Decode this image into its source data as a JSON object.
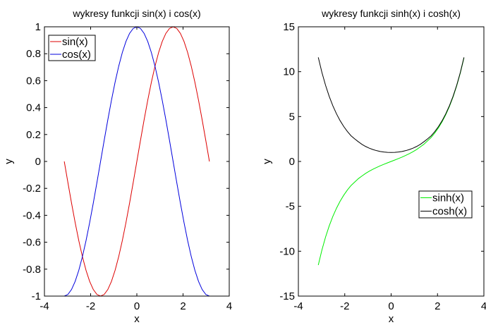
{
  "chart_data": [
    {
      "type": "line",
      "title": "wykresy funkcji sin(x) i cos(x)",
      "xlabel": "x",
      "ylabel": "y",
      "xlim": [
        -4,
        4
      ],
      "ylim": [
        -1,
        1
      ],
      "xticks": [
        -4,
        -2,
        0,
        2,
        4
      ],
      "yticks": [
        -1,
        -0.8,
        -0.6,
        -0.4,
        -0.2,
        0,
        0.2,
        0.4,
        0.6,
        0.8,
        1
      ],
      "xtick_labels": [
        "-4",
        "-2",
        "0",
        "2",
        "4"
      ],
      "ytick_labels": [
        "-1",
        "-0.8",
        "-0.6",
        "-0.4",
        "-0.2",
        "0",
        "0.2",
        "0.4",
        "0.6",
        "0.8",
        "1"
      ],
      "grid": false,
      "legend_position": "top-left",
      "series": [
        {
          "name": "sin(x)",
          "color": "#dd0000",
          "x": [
            -3.1416,
            -2.9845,
            -2.8274,
            -2.6704,
            -2.5133,
            -2.3562,
            -2.1991,
            -2.042,
            -1.885,
            -1.7279,
            -1.5708,
            -1.4137,
            -1.2566,
            -1.0996,
            -0.9425,
            -0.7854,
            -0.6283,
            -0.4712,
            -0.3142,
            -0.1571,
            0,
            0.1571,
            0.3142,
            0.4712,
            0.6283,
            0.7854,
            0.9425,
            1.0996,
            1.2566,
            1.4137,
            1.5708,
            1.7279,
            1.885,
            2.042,
            2.1991,
            2.3562,
            2.5133,
            2.6704,
            2.8274,
            2.9845,
            3.1416
          ],
          "y": [
            0,
            -0.1564,
            -0.309,
            -0.454,
            -0.5878,
            -0.7071,
            -0.809,
            -0.891,
            -0.9511,
            -0.9877,
            -1,
            -0.9877,
            -0.9511,
            -0.891,
            -0.809,
            -0.7071,
            -0.5878,
            -0.454,
            -0.309,
            -0.1564,
            0,
            0.1564,
            0.309,
            0.454,
            0.5878,
            0.7071,
            0.809,
            0.891,
            0.9511,
            0.9877,
            1,
            0.9877,
            0.9511,
            0.891,
            0.809,
            0.7071,
            0.5878,
            0.454,
            0.309,
            0.1564,
            0
          ]
        },
        {
          "name": "cos(x)",
          "color": "#0000dd",
          "x": [
            -3.1416,
            -2.9845,
            -2.8274,
            -2.6704,
            -2.5133,
            -2.3562,
            -2.1991,
            -2.042,
            -1.885,
            -1.7279,
            -1.5708,
            -1.4137,
            -1.2566,
            -1.0996,
            -0.9425,
            -0.7854,
            -0.6283,
            -0.4712,
            -0.3142,
            -0.1571,
            0,
            0.1571,
            0.3142,
            0.4712,
            0.6283,
            0.7854,
            0.9425,
            1.0996,
            1.2566,
            1.4137,
            1.5708,
            1.7279,
            1.885,
            2.042,
            2.1991,
            2.3562,
            2.5133,
            2.6704,
            2.8274,
            2.9845,
            3.1416
          ],
          "y": [
            -1,
            -0.9877,
            -0.9511,
            -0.891,
            -0.809,
            -0.7071,
            -0.5878,
            -0.454,
            -0.309,
            -0.1564,
            0,
            0.1564,
            0.309,
            0.454,
            0.5878,
            0.7071,
            0.809,
            0.891,
            0.9511,
            0.9877,
            1,
            0.9877,
            0.9511,
            0.891,
            0.809,
            0.7071,
            0.5878,
            0.454,
            0.309,
            0.1564,
            0,
            -0.1564,
            -0.309,
            -0.454,
            -0.5878,
            -0.7071,
            -0.809,
            -0.891,
            -0.9511,
            -0.9877,
            -1
          ]
        }
      ]
    },
    {
      "type": "line",
      "title": "wykresy funkcji sinh(x) i cosh(x)",
      "xlabel": "x",
      "ylabel": "y",
      "xlim": [
        -4,
        4
      ],
      "ylim": [
        -15,
        15
      ],
      "xticks": [
        -4,
        -2,
        0,
        2,
        4
      ],
      "yticks": [
        -15,
        -10,
        -5,
        0,
        5,
        10,
        15
      ],
      "xtick_labels": [
        "-4",
        "-2",
        "0",
        "2",
        "4"
      ],
      "ytick_labels": [
        "-15",
        "-10",
        "-5",
        "0",
        "5",
        "10",
        "15"
      ],
      "grid": false,
      "legend_position": "right",
      "series": [
        {
          "name": "sinh(x)",
          "color": "#00ee00",
          "x": [
            -3.1416,
            -2.9845,
            -2.8274,
            -2.6704,
            -2.5133,
            -2.3562,
            -2.1991,
            -2.042,
            -1.885,
            -1.7279,
            -1.5708,
            -1.4137,
            -1.2566,
            -1.0996,
            -0.9425,
            -0.7854,
            -0.6283,
            -0.4712,
            -0.3142,
            -0.1571,
            0,
            0.1571,
            0.3142,
            0.4712,
            0.6283,
            0.7854,
            0.9425,
            1.0996,
            1.2566,
            1.4137,
            1.5708,
            1.7279,
            1.885,
            2.042,
            2.1991,
            2.3562,
            2.5133,
            2.6704,
            2.8274,
            2.9845,
            3.1416
          ],
          "y": [
            -11.5487,
            -9.8646,
            -8.4209,
            -7.1831,
            -6.1215,
            -5.2104,
            -4.4281,
            -3.7557,
            -3.1772,
            -2.6786,
            -2.3013,
            -1.9168,
            -1.6183,
            -1.3325,
            -1.0877,
            -0.8687,
            -0.6705,
            -0.4887,
            -0.3194,
            -0.1577,
            0,
            0.1577,
            0.3194,
            0.4887,
            0.6705,
            0.8687,
            1.0877,
            1.3325,
            1.6183,
            1.9168,
            2.3013,
            2.6786,
            3.1772,
            3.7557,
            4.4281,
            5.2104,
            6.1215,
            7.1831,
            8.4209,
            9.8646,
            11.5487
          ]
        },
        {
          "name": "cosh(x)",
          "color": "#000000",
          "x": [
            -3.1416,
            -2.9845,
            -2.8274,
            -2.6704,
            -2.5133,
            -2.3562,
            -2.1991,
            -2.042,
            -1.885,
            -1.7279,
            -1.5708,
            -1.4137,
            -1.2566,
            -1.0996,
            -0.9425,
            -0.7854,
            -0.6283,
            -0.4712,
            -0.3142,
            -0.1571,
            0,
            0.1571,
            0.3142,
            0.4712,
            0.6283,
            0.7854,
            0.9425,
            1.0996,
            1.2566,
            1.4137,
            1.5708,
            1.7279,
            1.885,
            2.042,
            2.1991,
            2.3562,
            2.5133,
            2.6704,
            2.8274,
            2.9845,
            3.1416
          ],
          "y": [
            11.592,
            9.9151,
            8.48,
            7.2524,
            6.2026,
            5.3052,
            4.5397,
            3.8866,
            3.3309,
            2.8586,
            2.5092,
            2.1934,
            1.9,
            1.6687,
            1.4779,
            1.3246,
            1.2039,
            1.1131,
            1.0498,
            1.0124,
            1,
            1.0124,
            1.0498,
            1.1131,
            1.2039,
            1.3246,
            1.4779,
            1.6687,
            1.9,
            2.1934,
            2.5092,
            2.8586,
            3.3309,
            3.8866,
            4.5397,
            5.3052,
            6.2026,
            7.2524,
            8.48,
            9.9151,
            11.592
          ]
        }
      ]
    }
  ]
}
